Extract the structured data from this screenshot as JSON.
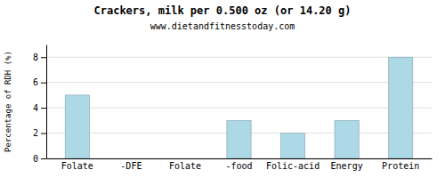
{
  "chart_data": {
    "type": "bar",
    "title": "Crackers, milk per 0.500 oz (or 14.20 g)",
    "subtitle": "www.dietandfitnesstoday.com",
    "ylabel": "Percentage of RDH (%)",
    "categories": [
      "Folate",
      "-DFE",
      "Folate",
      "-food",
      "Folic-acid",
      "Energy",
      "Protein"
    ],
    "values": [
      5,
      0,
      0,
      3,
      2,
      3,
      8
    ],
    "color": "#add8e6",
    "ylim": [
      0,
      9
    ],
    "yticks": [
      0,
      2,
      4,
      6,
      8
    ],
    "grid": true
  }
}
